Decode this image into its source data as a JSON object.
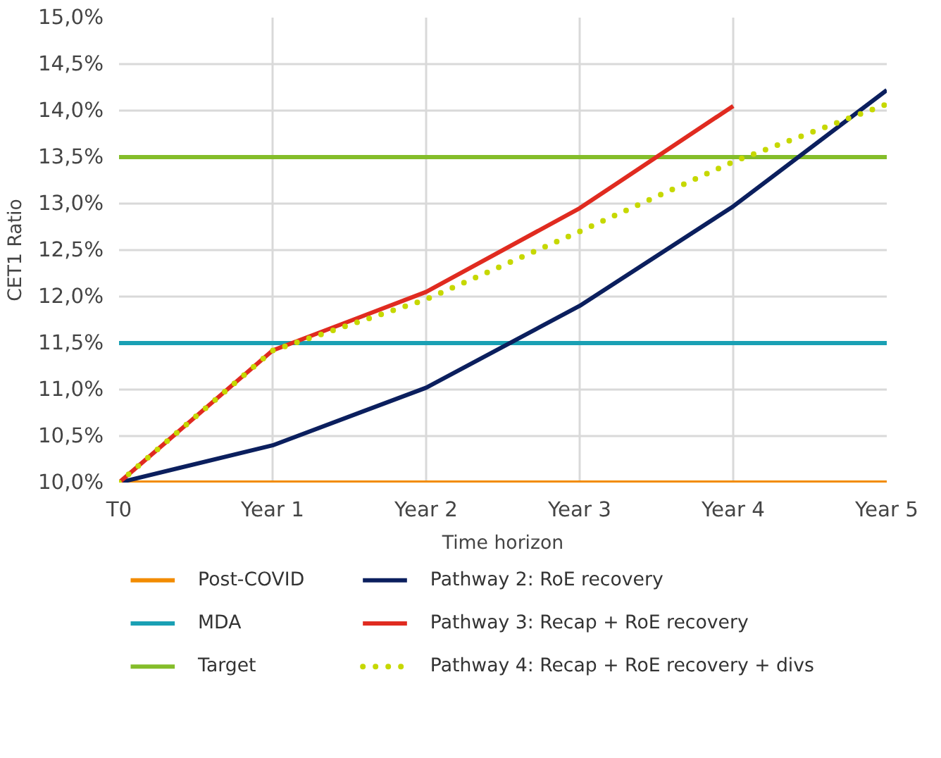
{
  "chart_data": {
    "type": "line",
    "xlabel": "Time horizon",
    "ylabel": "CET1 Ratio",
    "categories": [
      "T0",
      "Year 1",
      "Year 2",
      "Year 3",
      "Year 4",
      "Year 5"
    ],
    "ylim": [
      10,
      15
    ],
    "yticks": [
      {
        "value": 10,
        "label": "10,0%"
      },
      {
        "value": 10.5,
        "label": "10,5%"
      },
      {
        "value": 11,
        "label": "11,0%"
      },
      {
        "value": 11.5,
        "label": "11,5%"
      },
      {
        "value": 12,
        "label": "12,0%"
      },
      {
        "value": 12.5,
        "label": "12,5%"
      },
      {
        "value": 13,
        "label": "13,0%"
      },
      {
        "value": 13.5,
        "label": "13,5%"
      },
      {
        "value": 14,
        "label": "14,0%"
      },
      {
        "value": 14.5,
        "label": "14,5%"
      },
      {
        "value": 15,
        "label": "15,0%"
      }
    ],
    "grid": true,
    "legend": "bottom",
    "marker": "none",
    "series": [
      {
        "name": "Post-COVID",
        "color": "#f28c00",
        "values": [
          10,
          10,
          10,
          10,
          10,
          10
        ],
        "line_style": "solid"
      },
      {
        "name": "MDA",
        "color": "#1aa0b4",
        "values": [
          11.5,
          11.5,
          11.5,
          11.5,
          11.5,
          11.5
        ],
        "line_style": "solid"
      },
      {
        "name": "Target",
        "color": "#84bd2a",
        "values": [
          13.5,
          13.5,
          13.5,
          13.5,
          13.5,
          13.5
        ],
        "line_style": "solid"
      },
      {
        "name": "Pathway 2: RoE recovery",
        "color": "#0b1f5e",
        "values": [
          10,
          10.4,
          11.02,
          11.9,
          12.97,
          14.22
        ],
        "line_style": "solid"
      },
      {
        "name": "Pathway 3: Recap + RoE recovery",
        "color": "#e02b20",
        "values": [
          10,
          11.42,
          12.05,
          12.95,
          14.05,
          null
        ],
        "line_style": "solid"
      },
      {
        "name": "Pathway 4: Recap + RoE recovery + divs",
        "color": "#c6d800",
        "values": [
          10,
          11.42,
          11.97,
          12.7,
          13.45,
          14.07
        ],
        "line_style": "dotted"
      }
    ]
  }
}
